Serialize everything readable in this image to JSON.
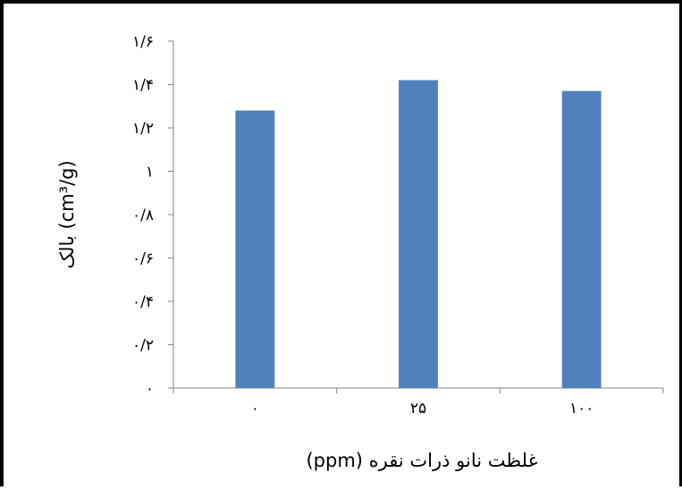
{
  "chart_data": {
    "type": "bar",
    "categories": [
      "۰",
      "۲۵",
      "۱۰۰"
    ],
    "values": [
      1.28,
      1.42,
      1.37
    ],
    "ylim": [
      0,
      1.6
    ],
    "yticks": [
      0,
      0.2,
      0.4,
      0.6,
      0.8,
      1.0,
      1.2,
      1.4,
      1.6
    ],
    "ytick_labels": [
      "۰",
      "۰/۲",
      "۰/۴",
      "۰/۶",
      "۰/۸",
      "۱",
      "۱/۲",
      "۱/۴",
      "۱/۶"
    ],
    "xlabel": "غلظت نانو ذرات نقره (ppm)",
    "ylabel": "بالک (cm³/g)",
    "grid": false,
    "legend": "none",
    "bar_color": "#4f81bd"
  }
}
